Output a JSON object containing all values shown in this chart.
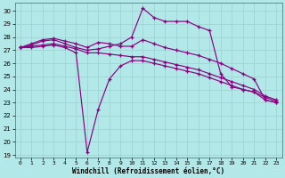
{
  "xlabel": "Windchill (Refroidissement éolien,°C)",
  "bg_color": "#b2e8e8",
  "grid_color": "#9ed4d4",
  "line_color": "#8b0080",
  "xlim": [
    -0.5,
    23.5
  ],
  "ylim": [
    18.8,
    30.6
  ],
  "yticks": [
    19,
    20,
    21,
    22,
    23,
    24,
    25,
    26,
    27,
    28,
    29,
    30
  ],
  "xticks": [
    0,
    1,
    2,
    3,
    4,
    5,
    6,
    7,
    8,
    9,
    10,
    11,
    12,
    13,
    14,
    15,
    16,
    17,
    18,
    19,
    20,
    21,
    22,
    23
  ],
  "s1": [
    27.2,
    27.5,
    27.8,
    27.9,
    27.7,
    27.5,
    27.2,
    27.6,
    27.5,
    27.3,
    27.3,
    27.8,
    27.5,
    27.2,
    27.0,
    26.8,
    26.6,
    26.3,
    26.0,
    25.6,
    25.2,
    24.8,
    23.2,
    23.0
  ],
  "s2": [
    27.2,
    27.4,
    27.7,
    27.8,
    27.5,
    27.2,
    27.0,
    27.1,
    27.3,
    27.5,
    28.0,
    30.2,
    29.5,
    29.2,
    29.2,
    29.2,
    28.8,
    28.5,
    25.2,
    24.2,
    24.0,
    23.8,
    23.2,
    23.0
  ],
  "s3": [
    27.2,
    27.3,
    27.4,
    27.5,
    27.3,
    27.1,
    26.8,
    26.8,
    26.7,
    26.6,
    26.5,
    26.5,
    26.3,
    26.1,
    25.9,
    25.7,
    25.5,
    25.2,
    24.9,
    24.6,
    24.3,
    24.0,
    23.5,
    23.2
  ],
  "s4": [
    27.2,
    27.2,
    27.3,
    27.4,
    27.2,
    26.8,
    19.2,
    22.5,
    24.8,
    25.8,
    26.2,
    26.2,
    26.0,
    25.8,
    25.6,
    25.4,
    25.2,
    24.9,
    24.6,
    24.3,
    24.0,
    23.8,
    23.4,
    23.1
  ]
}
